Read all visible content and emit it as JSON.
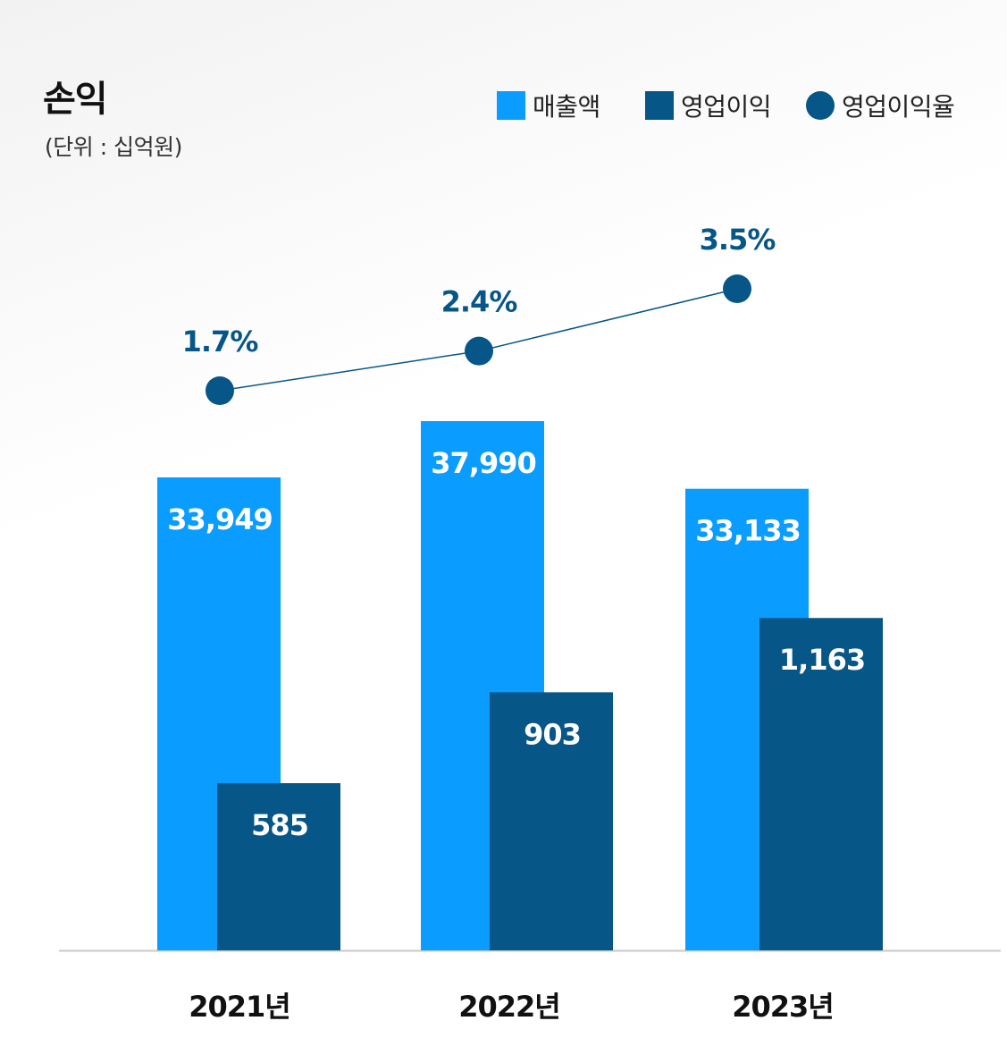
{
  "header": {
    "title": "손익",
    "unit": "(단위 : 십억원)"
  },
  "legend": [
    {
      "label": "매출액",
      "shape": "square",
      "color": "#0a9cff"
    },
    {
      "label": "영업이익",
      "shape": "square",
      "color": "#075688"
    },
    {
      "label": "영업이익율",
      "shape": "circle",
      "color": "#075688"
    }
  ],
  "chart_data": {
    "type": "bar",
    "categories": [
      "2021년",
      "2022년",
      "2023년"
    ],
    "series": [
      {
        "name": "매출액",
        "type": "bar",
        "values": [
          33949,
          37990,
          33133
        ],
        "labels": [
          "33,949",
          "37,990",
          "33,133"
        ],
        "color": "#0a9cff"
      },
      {
        "name": "영업이익",
        "type": "bar",
        "values": [
          585,
          903,
          1163
        ],
        "labels": [
          "585",
          "903",
          "1,163"
        ],
        "color": "#075688"
      },
      {
        "name": "영업이익율",
        "type": "line",
        "values": [
          1.7,
          2.4,
          3.5
        ],
        "labels": [
          "1.7%",
          "2.4%",
          "3.5%"
        ],
        "color": "#075688"
      }
    ],
    "title": "손익",
    "subtitle": "(단위 : 십억원)",
    "grid": false,
    "legend_position": "top-right"
  }
}
